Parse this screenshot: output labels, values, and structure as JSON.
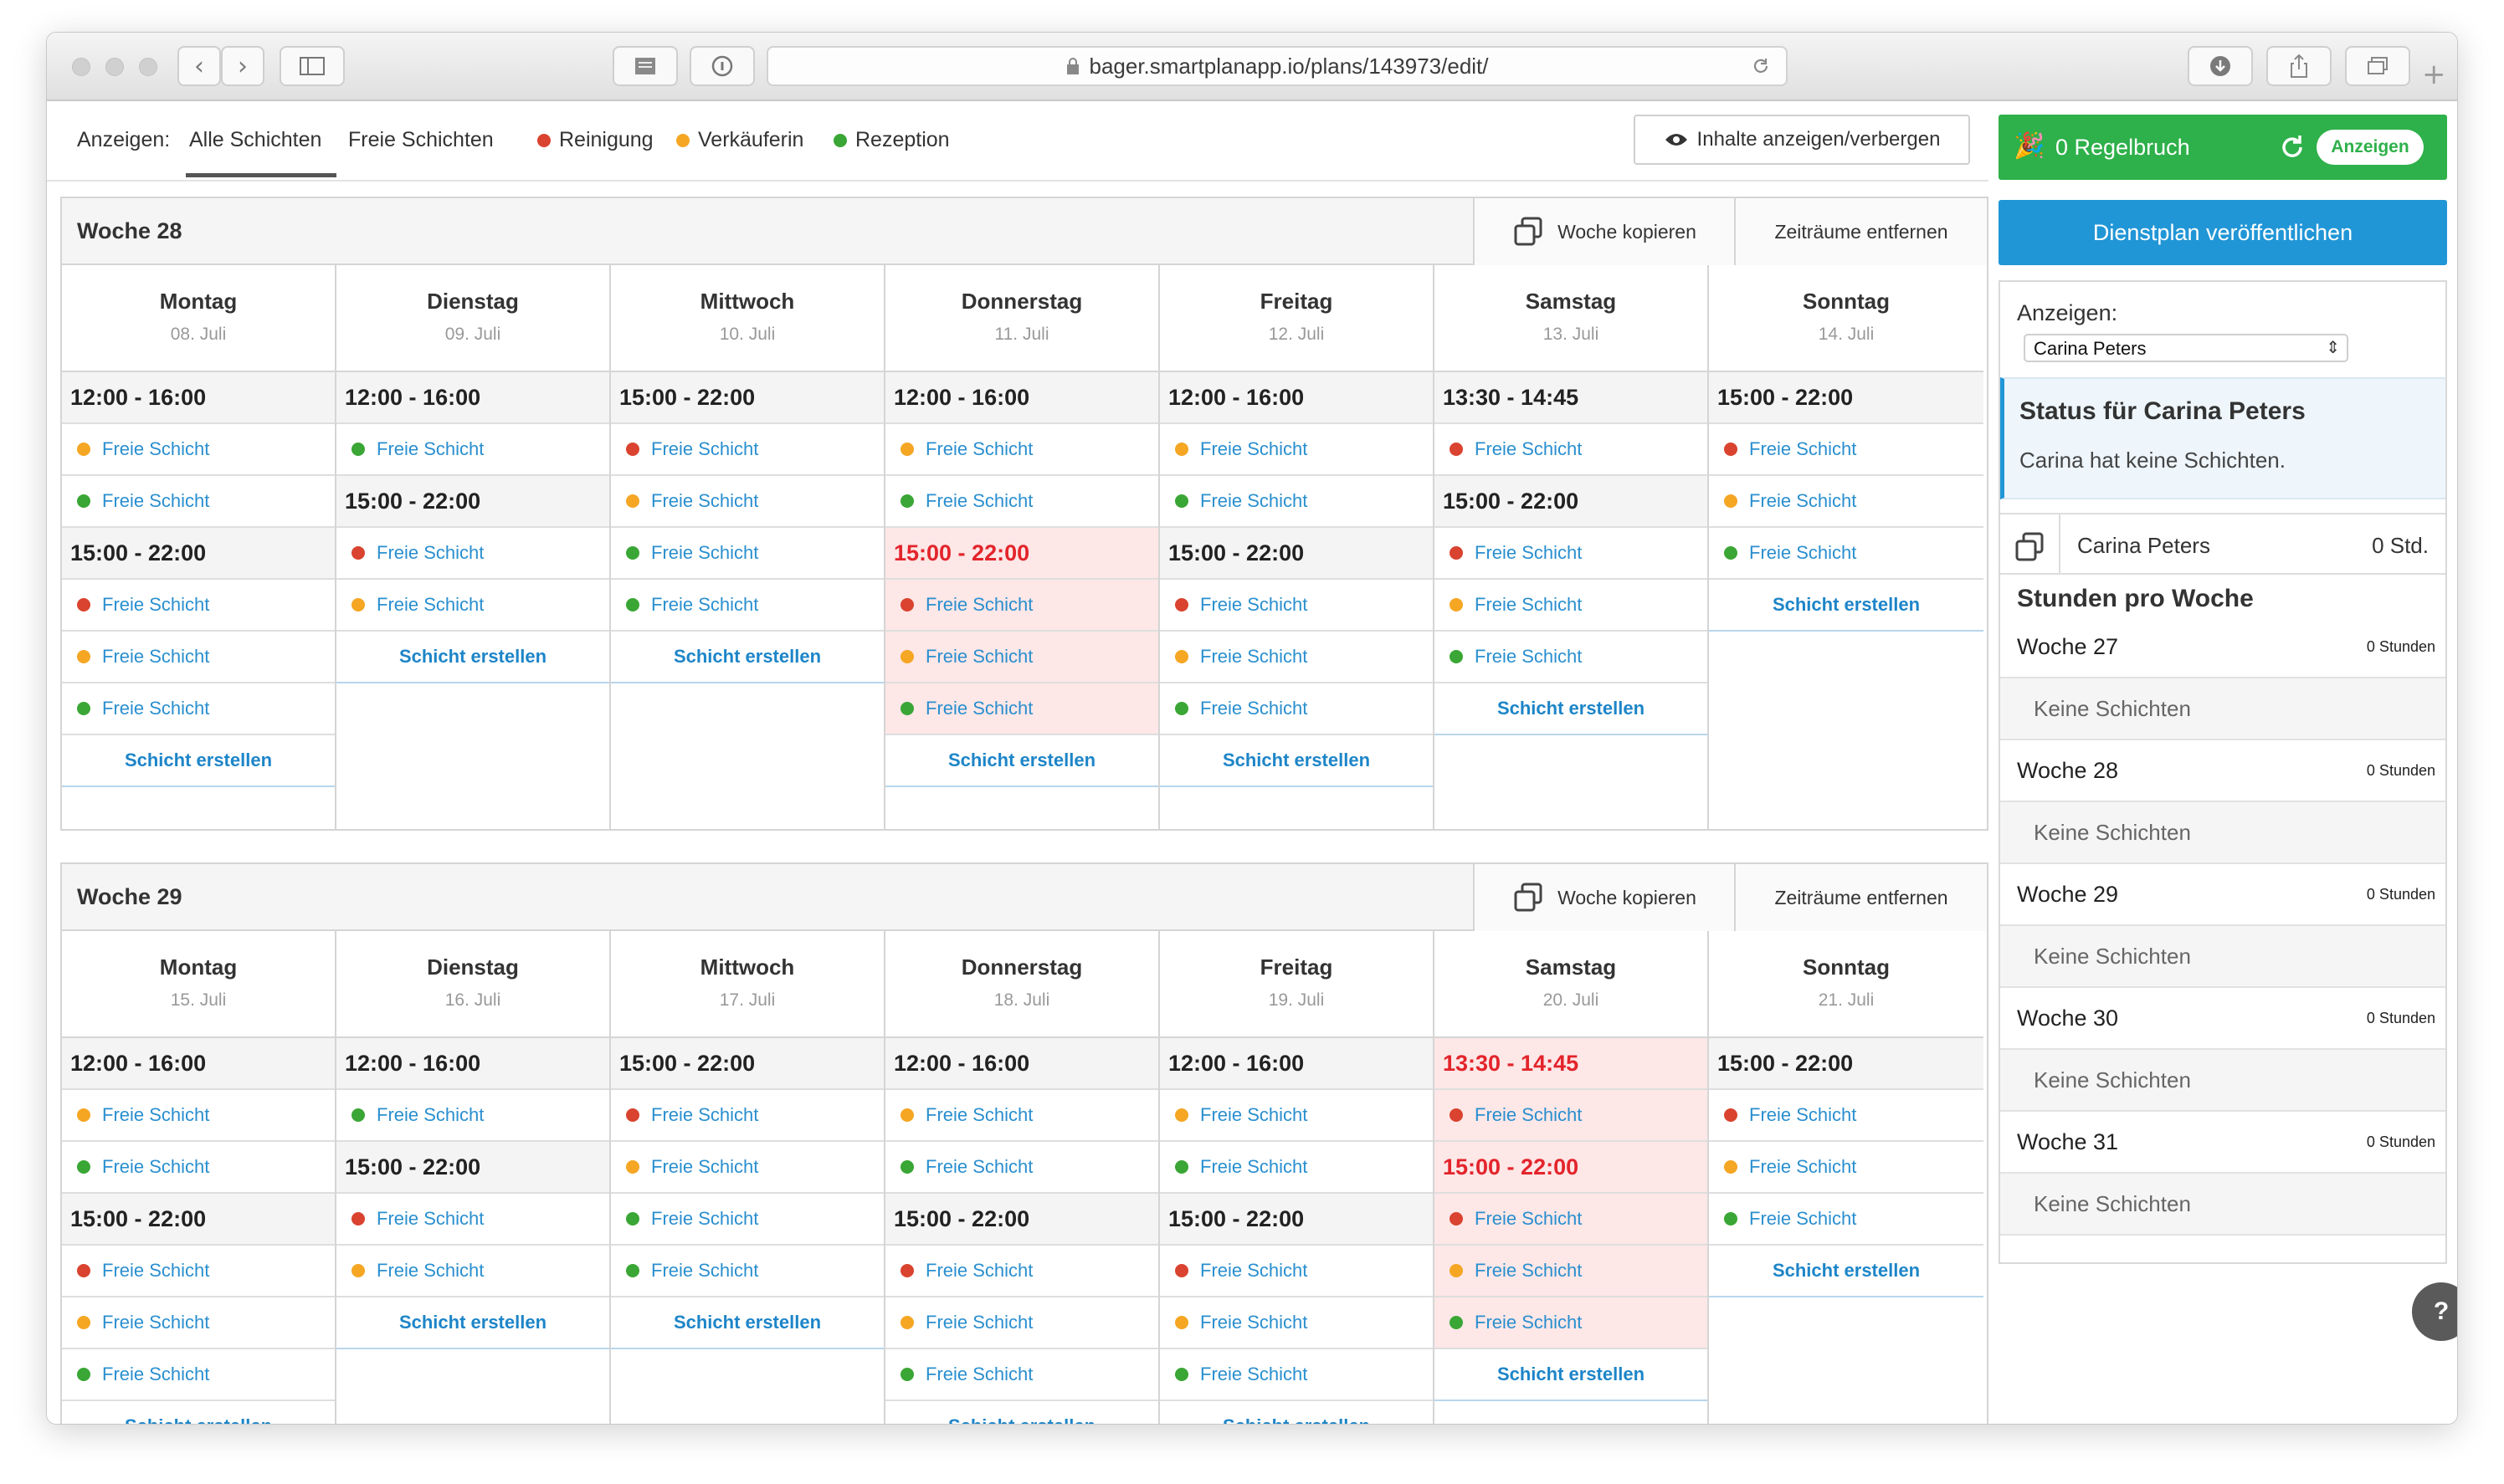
{
  "browser": {
    "url": "bager.smartplanapp.io/plans/143973/edit/"
  },
  "filters": {
    "label": "Anzeigen:",
    "tabs": [
      "Alle Schichten",
      "Freie Schichten"
    ],
    "legend": [
      {
        "label": "Reinigung",
        "color": "#d9432f"
      },
      {
        "label": "Verkäuferin",
        "color": "#f5a623"
      },
      {
        "label": "Rezeption",
        "color": "#3aa635"
      }
    ],
    "toggle_button": "Inhalte anzeigen/verbergen"
  },
  "labels": {
    "copy_week": "Woche kopieren",
    "remove_periods": "Zeiträume entfernen",
    "free_shift": "Freie Schicht",
    "create_shift": "Schicht erstellen"
  },
  "weeks": [
    {
      "title": "Woche 28",
      "days": [
        {
          "name": "Montag",
          "date": "08. Juli",
          "rows": [
            {
              "t": "time",
              "text": "12:00 - 16:00"
            },
            {
              "t": "free",
              "c": "#f5a623"
            },
            {
              "t": "free",
              "c": "#3aa635"
            },
            {
              "t": "time",
              "text": "15:00 - 22:00"
            },
            {
              "t": "free",
              "c": "#d9432f"
            },
            {
              "t": "free",
              "c": "#f5a623"
            },
            {
              "t": "free",
              "c": "#3aa635"
            },
            {
              "t": "create"
            }
          ]
        },
        {
          "name": "Dienstag",
          "date": "09. Juli",
          "rows": [
            {
              "t": "time",
              "text": "12:00 - 16:00"
            },
            {
              "t": "free",
              "c": "#3aa635"
            },
            {
              "t": "time",
              "text": "15:00 - 22:00"
            },
            {
              "t": "free",
              "c": "#d9432f"
            },
            {
              "t": "free",
              "c": "#f5a623"
            },
            {
              "t": "create"
            }
          ]
        },
        {
          "name": "Mittwoch",
          "date": "10. Juli",
          "rows": [
            {
              "t": "time",
              "text": "15:00 - 22:00"
            },
            {
              "t": "free",
              "c": "#d9432f"
            },
            {
              "t": "free",
              "c": "#f5a623"
            },
            {
              "t": "free",
              "c": "#3aa635"
            },
            {
              "t": "free",
              "c": "#3aa635"
            },
            {
              "t": "create"
            }
          ]
        },
        {
          "name": "Donnerstag",
          "date": "11. Juli",
          "rows": [
            {
              "t": "time",
              "text": "12:00 - 16:00"
            },
            {
              "t": "free",
              "c": "#f5a623"
            },
            {
              "t": "free",
              "c": "#3aa635"
            },
            {
              "t": "time",
              "text": "15:00 - 22:00",
              "red": true
            },
            {
              "t": "free",
              "c": "#d9432f",
              "red": true
            },
            {
              "t": "free",
              "c": "#f5a623",
              "red": true
            },
            {
              "t": "free",
              "c": "#3aa635",
              "red": true
            },
            {
              "t": "create"
            }
          ]
        },
        {
          "name": "Freitag",
          "date": "12. Juli",
          "rows": [
            {
              "t": "time",
              "text": "12:00 - 16:00"
            },
            {
              "t": "free",
              "c": "#f5a623"
            },
            {
              "t": "free",
              "c": "#3aa635"
            },
            {
              "t": "time",
              "text": "15:00 - 22:00"
            },
            {
              "t": "free",
              "c": "#d9432f"
            },
            {
              "t": "free",
              "c": "#f5a623"
            },
            {
              "t": "free",
              "c": "#3aa635"
            },
            {
              "t": "create"
            }
          ]
        },
        {
          "name": "Samstag",
          "date": "13. Juli",
          "rows": [
            {
              "t": "time",
              "text": "13:30 - 14:45"
            },
            {
              "t": "free",
              "c": "#d9432f"
            },
            {
              "t": "time",
              "text": "15:00 - 22:00"
            },
            {
              "t": "free",
              "c": "#d9432f"
            },
            {
              "t": "free",
              "c": "#f5a623"
            },
            {
              "t": "free",
              "c": "#3aa635"
            },
            {
              "t": "create"
            }
          ]
        },
        {
          "name": "Sonntag",
          "date": "14. Juli",
          "rows": [
            {
              "t": "time",
              "text": "15:00 - 22:00"
            },
            {
              "t": "free",
              "c": "#d9432f"
            },
            {
              "t": "free",
              "c": "#f5a623"
            },
            {
              "t": "free",
              "c": "#3aa635"
            },
            {
              "t": "create"
            }
          ]
        }
      ]
    },
    {
      "title": "Woche 29",
      "days": [
        {
          "name": "Montag",
          "date": "15. Juli",
          "rows": [
            {
              "t": "time",
              "text": "12:00 - 16:00"
            },
            {
              "t": "free",
              "c": "#f5a623"
            },
            {
              "t": "free",
              "c": "#3aa635"
            },
            {
              "t": "time",
              "text": "15:00 - 22:00"
            },
            {
              "t": "free",
              "c": "#d9432f"
            },
            {
              "t": "free",
              "c": "#f5a623"
            },
            {
              "t": "free",
              "c": "#3aa635"
            },
            {
              "t": "create"
            }
          ]
        },
        {
          "name": "Dienstag",
          "date": "16. Juli",
          "rows": [
            {
              "t": "time",
              "text": "12:00 - 16:00"
            },
            {
              "t": "free",
              "c": "#3aa635"
            },
            {
              "t": "time",
              "text": "15:00 - 22:00"
            },
            {
              "t": "free",
              "c": "#d9432f"
            },
            {
              "t": "free",
              "c": "#f5a623"
            },
            {
              "t": "create"
            }
          ]
        },
        {
          "name": "Mittwoch",
          "date": "17. Juli",
          "rows": [
            {
              "t": "time",
              "text": "15:00 - 22:00"
            },
            {
              "t": "free",
              "c": "#d9432f"
            },
            {
              "t": "free",
              "c": "#f5a623"
            },
            {
              "t": "free",
              "c": "#3aa635"
            },
            {
              "t": "free",
              "c": "#3aa635"
            },
            {
              "t": "create"
            }
          ]
        },
        {
          "name": "Donnerstag",
          "date": "18. Juli",
          "rows": [
            {
              "t": "time",
              "text": "12:00 - 16:00"
            },
            {
              "t": "free",
              "c": "#f5a623"
            },
            {
              "t": "free",
              "c": "#3aa635"
            },
            {
              "t": "time",
              "text": "15:00 - 22:00"
            },
            {
              "t": "free",
              "c": "#d9432f"
            },
            {
              "t": "free",
              "c": "#f5a623"
            },
            {
              "t": "free",
              "c": "#3aa635"
            },
            {
              "t": "create"
            }
          ]
        },
        {
          "name": "Freitag",
          "date": "19. Juli",
          "rows": [
            {
              "t": "time",
              "text": "12:00 - 16:00"
            },
            {
              "t": "free",
              "c": "#f5a623"
            },
            {
              "t": "free",
              "c": "#3aa635"
            },
            {
              "t": "time",
              "text": "15:00 - 22:00"
            },
            {
              "t": "free",
              "c": "#d9432f"
            },
            {
              "t": "free",
              "c": "#f5a623"
            },
            {
              "t": "free",
              "c": "#3aa635"
            },
            {
              "t": "create"
            }
          ]
        },
        {
          "name": "Samstag",
          "date": "20. Juli",
          "rows": [
            {
              "t": "time",
              "text": "13:30 - 14:45",
              "red": true
            },
            {
              "t": "free",
              "c": "#d9432f",
              "red": true
            },
            {
              "t": "time",
              "text": "15:00 - 22:00",
              "red": true
            },
            {
              "t": "free",
              "c": "#d9432f",
              "red": true
            },
            {
              "t": "free",
              "c": "#f5a623",
              "red": true
            },
            {
              "t": "free",
              "c": "#3aa635",
              "red": true
            },
            {
              "t": "create"
            }
          ]
        },
        {
          "name": "Sonntag",
          "date": "21. Juli",
          "rows": [
            {
              "t": "time",
              "text": "15:00 - 22:00"
            },
            {
              "t": "free",
              "c": "#d9432f"
            },
            {
              "t": "free",
              "c": "#f5a623"
            },
            {
              "t": "free",
              "c": "#3aa635"
            },
            {
              "t": "create"
            }
          ]
        }
      ]
    }
  ],
  "sidebar": {
    "rule_break": "0 Regelbruch",
    "show_button": "Anzeigen",
    "publish": "Dienstplan veröffentlichen",
    "show_label": "Anzeigen:",
    "selected_person": "Carina Peters",
    "status_title": "Status für Carina Peters",
    "status_text": "Carina hat keine Schichten.",
    "person_name": "Carina Peters",
    "person_hours": "0 Std.",
    "hours_heading": "Stunden pro Woche",
    "week_hours": [
      {
        "week": "Woche 27",
        "hours": "0 Stunden",
        "note": "Keine Schichten"
      },
      {
        "week": "Woche 28",
        "hours": "0 Stunden",
        "note": "Keine Schichten"
      },
      {
        "week": "Woche 29",
        "hours": "0 Stunden",
        "note": "Keine Schichten"
      },
      {
        "week": "Woche 30",
        "hours": "0 Stunden",
        "note": "Keine Schichten"
      },
      {
        "week": "Woche 31",
        "hours": "0 Stunden",
        "note": "Keine Schichten"
      }
    ],
    "help": "?"
  },
  "colors": {
    "green": "#2eb04a",
    "blue": "#2196d6",
    "red_text": "#e3242b",
    "red_bg": "#fde7e7"
  }
}
